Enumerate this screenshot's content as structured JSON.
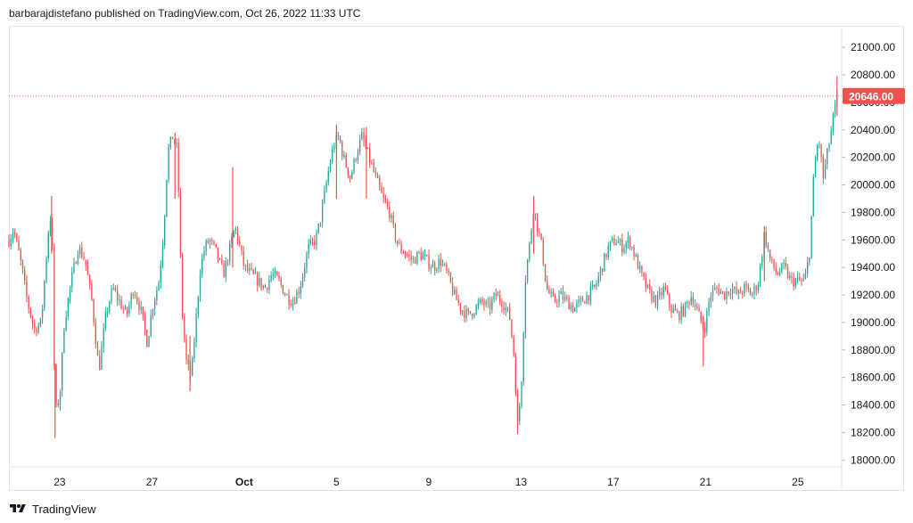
{
  "header": {
    "published_text": "barbarajdistefano published on TradingView.com, Oct 26, 2022 11:33 UTC"
  },
  "footer": {
    "brand": "TradingView",
    "logo_icon": "tradingview-logo-icon"
  },
  "colors": {
    "up": "#26a69a",
    "down": "#ef5350",
    "price_label_bg": "#ef5350",
    "grid": "#e0e3eb",
    "axis_text": "#131722"
  },
  "chart_data": {
    "type": "candlestick",
    "title": "",
    "xlabel": "",
    "ylabel": "",
    "ylim": [
      17950,
      21150
    ],
    "y_ticks": [
      "21000.00",
      "20800.00",
      "20600.00",
      "20400.00",
      "20200.00",
      "20000.00",
      "19800.00",
      "19600.00",
      "19400.00",
      "19200.00",
      "19000.00",
      "18800.00",
      "18600.00",
      "18400.00",
      "18200.00",
      "18000.00"
    ],
    "x_ticks": [
      {
        "label": "23",
        "day": 23
      },
      {
        "label": "27",
        "day": 27
      },
      {
        "label": "Oct",
        "day": 31
      },
      {
        "label": "5",
        "day": 35
      },
      {
        "label": "9",
        "day": 39
      },
      {
        "label": "13",
        "day": 43
      },
      {
        "label": "17",
        "day": 47
      },
      {
        "label": "21",
        "day": 51
      },
      {
        "label": "25",
        "day": 55
      }
    ],
    "xlim_days": [
      20.8,
      56.9
    ],
    "last_price": 20646.0,
    "last_price_label": "20646.00",
    "grid": false,
    "path": [
      [
        20.8,
        19600
      ],
      [
        21.0,
        19680
      ],
      [
        21.3,
        19450
      ],
      [
        21.6,
        19150
      ],
      [
        21.9,
        18950
      ],
      [
        22.2,
        19000
      ],
      [
        22.5,
        19650
      ],
      [
        22.65,
        19820
      ],
      [
        22.8,
        18350
      ],
      [
        23.0,
        18450
      ],
      [
        23.2,
        19000
      ],
      [
        23.5,
        19300
      ],
      [
        23.8,
        19550
      ],
      [
        24.1,
        19450
      ],
      [
        24.4,
        19150
      ],
      [
        24.7,
        18650
      ],
      [
        25.0,
        19050
      ],
      [
        25.3,
        19250
      ],
      [
        25.6,
        19150
      ],
      [
        25.9,
        19050
      ],
      [
        26.2,
        19250
      ],
      [
        26.5,
        19100
      ],
      [
        26.8,
        18850
      ],
      [
        27.0,
        19100
      ],
      [
        27.3,
        19300
      ],
      [
        27.5,
        19650
      ],
      [
        27.7,
        20250
      ],
      [
        27.9,
        20350
      ],
      [
        28.1,
        20250
      ],
      [
        28.3,
        19100
      ],
      [
        28.5,
        18700
      ],
      [
        28.7,
        18600
      ],
      [
        28.9,
        19000
      ],
      [
        29.1,
        19400
      ],
      [
        29.3,
        19550
      ],
      [
        29.5,
        19600
      ],
      [
        29.8,
        19500
      ],
      [
        30.1,
        19350
      ],
      [
        30.4,
        19550
      ],
      [
        30.6,
        19700
      ],
      [
        30.8,
        19550
      ],
      [
        31.0,
        19400
      ],
      [
        31.3,
        19350
      ],
      [
        31.6,
        19300
      ],
      [
        31.9,
        19250
      ],
      [
        32.2,
        19350
      ],
      [
        32.5,
        19300
      ],
      [
        32.8,
        19200
      ],
      [
        33.1,
        19150
      ],
      [
        33.4,
        19250
      ],
      [
        33.6,
        19400
      ],
      [
        33.8,
        19550
      ],
      [
        34.1,
        19600
      ],
      [
        34.3,
        19750
      ],
      [
        34.5,
        19950
      ],
      [
        34.7,
        20150
      ],
      [
        34.9,
        20300
      ],
      [
        35.1,
        20350
      ],
      [
        35.3,
        20200
      ],
      [
        35.6,
        20050
      ],
      [
        35.9,
        20250
      ],
      [
        36.1,
        20350
      ],
      [
        36.4,
        20200
      ],
      [
        36.7,
        20050
      ],
      [
        37.0,
        19900
      ],
      [
        37.3,
        19800
      ],
      [
        37.5,
        19650
      ],
      [
        37.7,
        19550
      ],
      [
        38.0,
        19500
      ],
      [
        38.3,
        19450
      ],
      [
        38.6,
        19500
      ],
      [
        38.9,
        19450
      ],
      [
        39.2,
        19400
      ],
      [
        39.5,
        19450
      ],
      [
        39.8,
        19350
      ],
      [
        40.1,
        19200
      ],
      [
        40.4,
        19100
      ],
      [
        40.7,
        19050
      ],
      [
        41.0,
        19100
      ],
      [
        41.3,
        19150
      ],
      [
        41.6,
        19100
      ],
      [
        41.9,
        19200
      ],
      [
        42.2,
        19150
      ],
      [
        42.5,
        19050
      ],
      [
        42.7,
        18750
      ],
      [
        42.85,
        18250
      ],
      [
        43.0,
        18500
      ],
      [
        43.2,
        19350
      ],
      [
        43.4,
        19600
      ],
      [
        43.55,
        19850
      ],
      [
        43.7,
        19700
      ],
      [
        43.9,
        19550
      ],
      [
        44.1,
        19250
      ],
      [
        44.4,
        19150
      ],
      [
        44.7,
        19200
      ],
      [
        45.0,
        19150
      ],
      [
        45.3,
        19100
      ],
      [
        45.6,
        19150
      ],
      [
        45.9,
        19200
      ],
      [
        46.2,
        19250
      ],
      [
        46.5,
        19400
      ],
      [
        46.8,
        19550
      ],
      [
        47.1,
        19600
      ],
      [
        47.4,
        19550
      ],
      [
        47.7,
        19600
      ],
      [
        48.0,
        19450
      ],
      [
        48.3,
        19300
      ],
      [
        48.6,
        19200
      ],
      [
        48.9,
        19150
      ],
      [
        49.2,
        19250
      ],
      [
        49.5,
        19100
      ],
      [
        49.8,
        19050
      ],
      [
        50.1,
        19100
      ],
      [
        50.4,
        19200
      ],
      [
        50.7,
        19050
      ],
      [
        50.95,
        18950
      ],
      [
        51.2,
        19200
      ],
      [
        51.5,
        19250
      ],
      [
        51.8,
        19200
      ],
      [
        52.1,
        19250
      ],
      [
        52.4,
        19200
      ],
      [
        52.7,
        19250
      ],
      [
        53.0,
        19200
      ],
      [
        53.3,
        19300
      ],
      [
        53.55,
        19650
      ],
      [
        53.8,
        19450
      ],
      [
        54.1,
        19350
      ],
      [
        54.4,
        19400
      ],
      [
        54.7,
        19300
      ],
      [
        55.0,
        19300
      ],
      [
        55.3,
        19300
      ],
      [
        55.5,
        19500
      ],
      [
        55.7,
        20100
      ],
      [
        55.9,
        20350
      ],
      [
        56.1,
        20050
      ],
      [
        56.3,
        20250
      ],
      [
        56.5,
        20450
      ],
      [
        56.7,
        20646
      ]
    ],
    "spikes": [
      {
        "day": 22.65,
        "high": 19920,
        "low": 19500
      },
      {
        "day": 22.8,
        "high": 18700,
        "low": 18160
      },
      {
        "day": 28.0,
        "high": 20380,
        "low": 19900
      },
      {
        "day": 28.65,
        "high": 18900,
        "low": 18500
      },
      {
        "day": 30.5,
        "high": 20130,
        "low": 19400
      },
      {
        "day": 35.0,
        "high": 20440,
        "low": 19900
      },
      {
        "day": 36.3,
        "high": 20420,
        "low": 19900
      },
      {
        "day": 42.85,
        "high": 18500,
        "low": 18190
      },
      {
        "day": 43.55,
        "high": 19920,
        "low": 19500
      },
      {
        "day": 50.9,
        "high": 19050,
        "low": 18680
      },
      {
        "day": 53.55,
        "high": 19700,
        "low": 19300
      },
      {
        "day": 56.7,
        "high": 20790,
        "low": 20500
      }
    ]
  }
}
